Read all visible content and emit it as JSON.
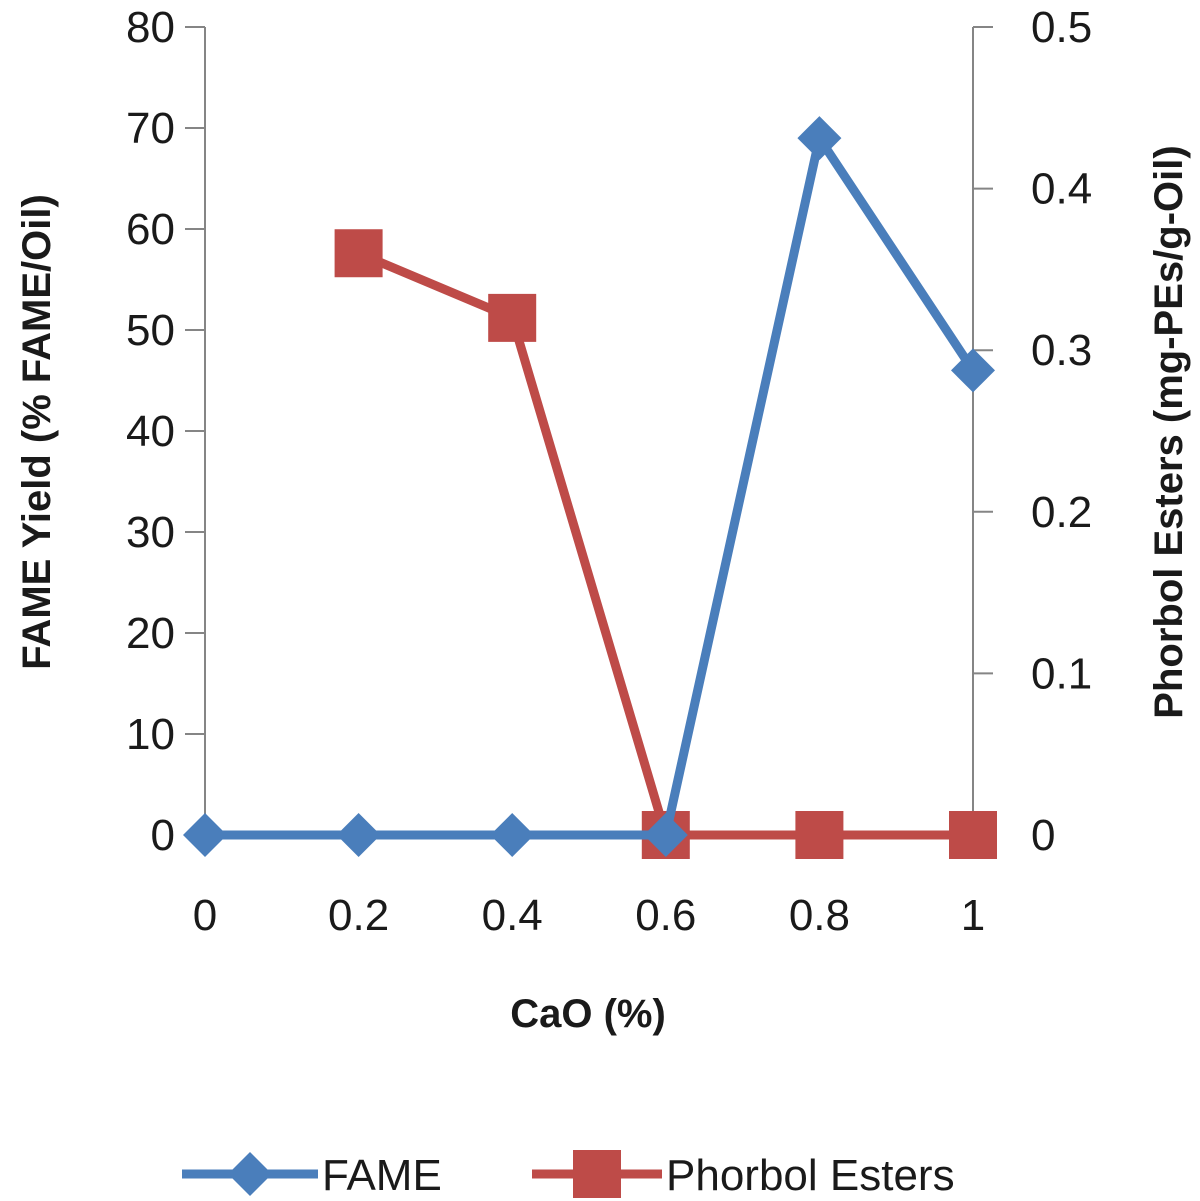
{
  "chart_data": {
    "type": "line",
    "title": "",
    "xlabel": "CaO (%)",
    "ylabel_left": "FAME Yield (% FAME/Oil)",
    "ylabel_right": "Phorbol Esters (mg-PEs/g-Oil)",
    "x": [
      0,
      0.2,
      0.4,
      0.6,
      0.8,
      1
    ],
    "x_tick_labels": [
      "0",
      "0.2",
      "0.4",
      "0.6",
      "0.8",
      "1"
    ],
    "xlim": [
      0,
      1
    ],
    "ylim_left": [
      0,
      80
    ],
    "ylim_right": [
      0,
      0.5
    ],
    "y_left_tick_labels": [
      "0",
      "10",
      "20",
      "30",
      "40",
      "50",
      "60",
      "70",
      "80"
    ],
    "y_right_tick_labels": [
      "0",
      "0.1",
      "0.2",
      "0.3",
      "0.4",
      "0.5"
    ],
    "grid": false,
    "legend_position": "bottom",
    "series": [
      {
        "name": "FAME",
        "axis": "left",
        "marker": "diamond",
        "color": "#4a7ebb",
        "x": [
          0,
          0.2,
          0.4,
          0.6,
          0.8,
          1
        ],
        "values": [
          0,
          0,
          0,
          0,
          69,
          46
        ]
      },
      {
        "name": "Phorbol Esters",
        "axis": "right",
        "marker": "square",
        "color": "#be4b48",
        "x": [
          0.2,
          0.4,
          0.6,
          0.8,
          1
        ],
        "values": [
          0.36,
          0.32,
          0,
          0,
          0
        ]
      }
    ]
  }
}
